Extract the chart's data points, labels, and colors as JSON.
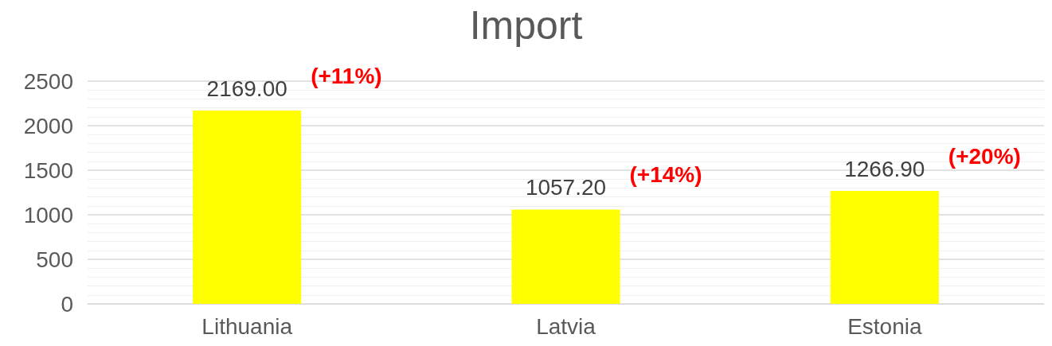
{
  "chart_data": {
    "type": "bar",
    "title": "Import",
    "categories": [
      "Lithuania",
      "Latvia",
      "Estonia"
    ],
    "values": [
      2169.0,
      1057.2,
      1266.9
    ],
    "color": "#ffff00",
    "value_labels": [
      "2169.00",
      "1057.20",
      "1266.90"
    ],
    "annotations": [
      "(+11%)",
      "(+14%)",
      "(+20%)"
    ],
    "ylim": [
      0,
      2500
    ],
    "yticks": [
      0,
      500,
      1000,
      1500,
      2000,
      2500
    ],
    "grid": true
  }
}
